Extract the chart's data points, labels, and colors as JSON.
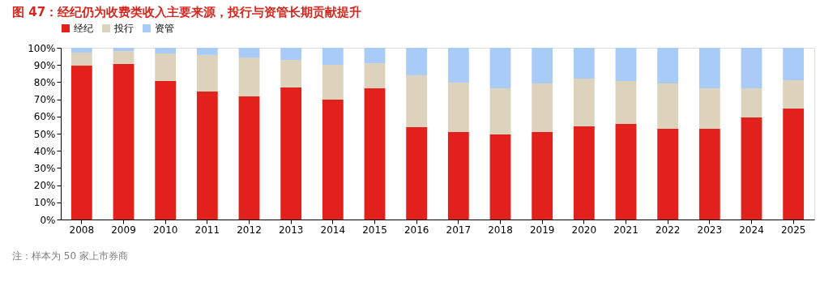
{
  "chart_data": {
    "type": "bar",
    "stacked": true,
    "title": "图 47：经纪仍为收费类收入主要来源，投行与资管长期贡献提升",
    "categories": [
      "2008",
      "2009",
      "2010",
      "2011",
      "2012",
      "2013",
      "2014",
      "2015",
      "2016",
      "2017",
      "2018",
      "2019",
      "2020",
      "2021",
      "2022",
      "2023",
      "2024",
      "2025"
    ],
    "series": [
      {
        "name": "经纪",
        "color": "#e3211c",
        "values": [
          89.6,
          90.6,
          80.7,
          74.5,
          71.7,
          76.9,
          69.8,
          76.4,
          53.8,
          50.9,
          49.5,
          50.9,
          54.2,
          55.7,
          52.8,
          52.8,
          59.4,
          64.6
        ]
      },
      {
        "name": "投行",
        "color": "#ddd3bd",
        "values": [
          7.6,
          7.5,
          16,
          21.3,
          22.6,
          16,
          20.3,
          14.6,
          30.2,
          28.8,
          26.9,
          28.3,
          27.9,
          25,
          26.4,
          23.6,
          17,
          16.5
        ]
      },
      {
        "name": "资管",
        "color": "#a9cbf7",
        "values": [
          2.8,
          1.9,
          3.3,
          4.2,
          5.7,
          7.1,
          9.9,
          9,
          16,
          20.3,
          23.6,
          20.8,
          17.9,
          19.3,
          20.8,
          23.6,
          23.6,
          18.9
        ]
      }
    ],
    "ylim": [
      0,
      100
    ],
    "yticks": [
      {
        "value": 0,
        "label": "0%"
      },
      {
        "value": 10,
        "label": "10%"
      },
      {
        "value": 20,
        "label": "20%"
      },
      {
        "value": 30,
        "label": "30%"
      },
      {
        "value": 40,
        "label": "40%"
      },
      {
        "value": 50,
        "label": "50%"
      },
      {
        "value": 60,
        "label": "60%"
      },
      {
        "value": 70,
        "label": "70%"
      },
      {
        "value": 80,
        "label": "80%"
      },
      {
        "value": 90,
        "label": "90%"
      },
      {
        "value": 100,
        "label": "100%"
      }
    ],
    "grid": false,
    "legend": "top",
    "annotations": [
      "注：样本为 50 家上市券商"
    ]
  }
}
